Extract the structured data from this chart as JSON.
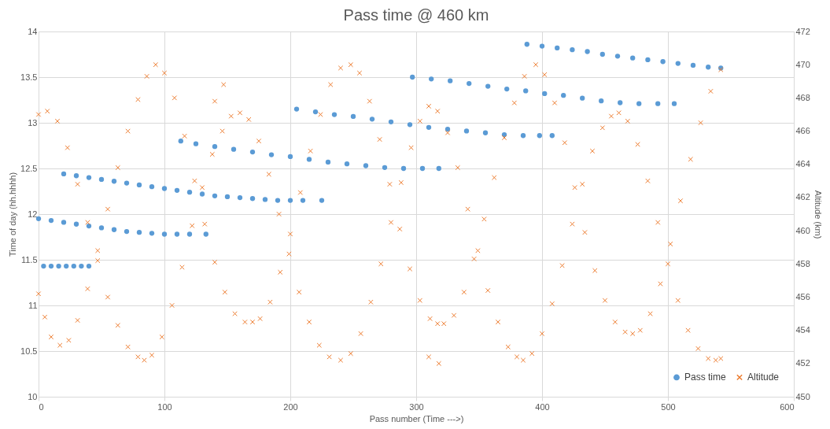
{
  "chart_data": {
    "type": "scatter",
    "title": "Pass time @ 460 km",
    "xlabel": "Pass number (Time --->)",
    "ylabel": "Time of day (hh.hhhh)",
    "y2label": "Altitude (km)",
    "xlim": [
      0,
      600
    ],
    "xticks": [
      0,
      100,
      200,
      300,
      400,
      500,
      600
    ],
    "ylim": [
      10,
      14
    ],
    "yticks": [
      10,
      10.5,
      11,
      11.5,
      12,
      12.5,
      13,
      13.5,
      14
    ],
    "y2lim": [
      450,
      472
    ],
    "y2ticks": [
      450,
      452,
      454,
      456,
      458,
      460,
      462,
      464,
      466,
      468,
      470,
      472
    ],
    "grid": true,
    "legend": "bottom right",
    "series": [
      {
        "name": "Pass time",
        "color": "#5b9bd5",
        "marker": "circle",
        "x": [
          4,
          10,
          16,
          22,
          28,
          34,
          40,
          0,
          10,
          20,
          30,
          40,
          50,
          60,
          70,
          80,
          90,
          100,
          110,
          120,
          133,
          20,
          30,
          40,
          50,
          60,
          70,
          80,
          90,
          100,
          110,
          120,
          130,
          140,
          150,
          160,
          170,
          180,
          190,
          200,
          210,
          225,
          113,
          125,
          140,
          155,
          170,
          185,
          200,
          215,
          230,
          245,
          260,
          275,
          290,
          305,
          318,
          205,
          220,
          235,
          250,
          265,
          280,
          295,
          310,
          325,
          340,
          355,
          370,
          385,
          398,
          408,
          297,
          312,
          327,
          342,
          357,
          372,
          387,
          402,
          417,
          432,
          447,
          462,
          477,
          492,
          505,
          388,
          400,
          412,
          424,
          436,
          448,
          460,
          472,
          484,
          496,
          508,
          520,
          532,
          542
        ],
        "values": [
          11.43,
          11.43,
          11.43,
          11.43,
          11.43,
          11.43,
          11.43,
          11.95,
          11.93,
          11.91,
          11.89,
          11.87,
          11.85,
          11.83,
          11.81,
          11.8,
          11.79,
          11.78,
          11.78,
          11.78,
          11.78,
          12.44,
          12.42,
          12.4,
          12.38,
          12.36,
          12.34,
          12.32,
          12.3,
          12.28,
          12.26,
          12.24,
          12.22,
          12.2,
          12.19,
          12.18,
          12.17,
          12.16,
          12.15,
          12.15,
          12.15,
          12.15,
          12.8,
          12.77,
          12.74,
          12.71,
          12.68,
          12.65,
          12.63,
          12.6,
          12.57,
          12.55,
          12.53,
          12.51,
          12.5,
          12.5,
          12.5,
          13.15,
          13.12,
          13.09,
          13.07,
          13.04,
          13.01,
          12.98,
          12.95,
          12.93,
          12.91,
          12.89,
          12.87,
          12.86,
          12.86,
          12.86,
          13.5,
          13.48,
          13.46,
          13.43,
          13.4,
          13.37,
          13.35,
          13.32,
          13.3,
          13.27,
          13.24,
          13.22,
          13.21,
          13.21,
          13.21,
          13.86,
          13.84,
          13.82,
          13.8,
          13.78,
          13.75,
          13.73,
          13.71,
          13.69,
          13.67,
          13.65,
          13.63,
          13.61,
          13.6
        ]
      },
      {
        "name": "Altitude",
        "color": "#ed7d31",
        "marker": "cross",
        "axis": "y2",
        "x": [
          0,
          7,
          15,
          23,
          31,
          39,
          47,
          55,
          63,
          71,
          79,
          84,
          90,
          98,
          106,
          114,
          122,
          130,
          138,
          146,
          153,
          160,
          167,
          175,
          183,
          191,
          199,
          207,
          215,
          223,
          231,
          240,
          248,
          256,
          264,
          272,
          280,
          288,
          296,
          303,
          310,
          317,
          325,
          333,
          341,
          349,
          357,
          365,
          373,
          380,
          385,
          392,
          400,
          408,
          416,
          424,
          432,
          440,
          448,
          455,
          461,
          468,
          476,
          484,
          492,
          500,
          508,
          516,
          524,
          532,
          538,
          542,
          0,
          5,
          10,
          17,
          24,
          31,
          39,
          47,
          55,
          63,
          71,
          79,
          86,
          93,
          100,
          108,
          116,
          124,
          132,
          140,
          148,
          156,
          164,
          170,
          176,
          184,
          192,
          200,
          208,
          216,
          224,
          232,
          240,
          248,
          255,
          263,
          271,
          279,
          287,
          295,
          303,
          311,
          317,
          322,
          330,
          338,
          346,
          354,
          362,
          370,
          378,
          386,
          395,
          402,
          410,
          418,
          426,
          434,
          442,
          450,
          458,
          466,
          472,
          478,
          486,
          494,
          502,
          510,
          518,
          526,
          534,
          542,
          147,
          140,
          310,
          318
        ],
        "values": [
          467.0,
          467.2,
          466.6,
          465.0,
          462.8,
          460.5,
          458.2,
          456.0,
          454.3,
          453.0,
          452.4,
          452.2,
          452.5,
          453.6,
          455.5,
          457.8,
          460.3,
          462.6,
          464.6,
          466.0,
          466.9,
          467.1,
          466.7,
          465.4,
          463.4,
          461.0,
          458.6,
          456.3,
          454.5,
          453.1,
          452.4,
          452.2,
          452.6,
          453.8,
          455.7,
          458.0,
          460.5,
          462.9,
          465.0,
          466.6,
          467.5,
          467.2,
          465.9,
          463.8,
          461.3,
          458.8,
          456.4,
          454.5,
          453.0,
          452.4,
          452.2,
          452.6,
          453.8,
          455.6,
          457.9,
          460.4,
          462.8,
          464.8,
          466.2,
          466.9,
          467.1,
          466.6,
          465.2,
          463.0,
          460.5,
          458.0,
          455.8,
          454.0,
          452.9,
          452.3,
          452.2,
          452.3,
          456.2,
          454.8,
          453.6,
          453.1,
          453.4,
          454.6,
          456.5,
          458.8,
          461.3,
          463.8,
          466.0,
          467.9,
          469.3,
          470.0,
          469.5,
          468.0,
          465.7,
          463.0,
          460.4,
          458.1,
          456.3,
          455.0,
          454.5,
          454.5,
          454.7,
          455.7,
          457.5,
          459.8,
          462.3,
          464.8,
          467.0,
          468.8,
          469.8,
          470.0,
          469.5,
          467.8,
          465.5,
          462.8,
          460.1,
          457.7,
          455.8,
          454.7,
          454.4,
          454.4,
          454.9,
          456.3,
          458.3,
          460.7,
          463.2,
          465.6,
          467.7,
          469.3,
          470.0,
          469.4,
          467.7,
          465.3,
          462.6,
          459.9,
          457.6,
          455.8,
          454.5,
          453.9,
          453.8,
          454.0,
          455.0,
          456.8,
          459.2,
          461.8,
          464.3,
          466.5,
          468.4,
          469.7,
          468.8,
          467.8,
          452.4,
          452.0
        ]
      }
    ]
  }
}
